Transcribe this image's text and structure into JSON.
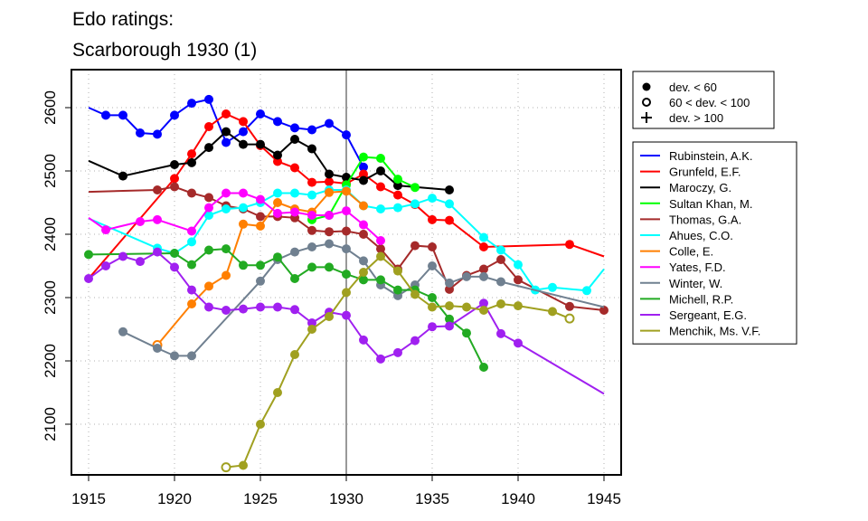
{
  "chart_data": {
    "type": "line",
    "title_lines": [
      "Edo ratings:",
      "Scarborough 1930 (1)"
    ],
    "xlim": [
      1914,
      1946
    ],
    "ylim": [
      2020,
      2660
    ],
    "xticks": [
      1915,
      1920,
      1925,
      1930,
      1935,
      1940,
      1945
    ],
    "yticks": [
      2100,
      2200,
      2300,
      2400,
      2500,
      2600
    ],
    "event_year": 1930,
    "grid": true,
    "marker_legend": [
      {
        "symbol": "filled-circle",
        "label": "dev. < 60"
      },
      {
        "symbol": "open-circle",
        "label": "60 < dev. < 100"
      },
      {
        "symbol": "plus",
        "label": "dev. > 100"
      }
    ],
    "series": [
      {
        "name": "Rubinstein, A.K.",
        "color": "#0000ff",
        "x": [
          1915,
          1916,
          1917,
          1918,
          1919,
          1920,
          1921,
          1922,
          1923,
          1924,
          1925,
          1926,
          1927,
          1928,
          1929,
          1930,
          1931
        ],
        "y": [
          2600,
          2588,
          2588,
          2560,
          2558,
          2588,
          2607,
          2613,
          2545,
          2562,
          2590,
          2578,
          2568,
          2565,
          2575,
          2557,
          2506
        ],
        "markers": [
          "none",
          "filled",
          "filled",
          "filled",
          "filled",
          "filled",
          "filled",
          "filled",
          "filled",
          "filled",
          "filled",
          "filled",
          "filled",
          "filled",
          "filled",
          "filled",
          "filled"
        ]
      },
      {
        "name": "Grunfeld, E.F.",
        "color": "#ff0000",
        "x": [
          1915,
          1920,
          1921,
          1922,
          1923,
          1924,
          1925,
          1926,
          1927,
          1928,
          1929,
          1930,
          1931,
          1932,
          1933,
          1934,
          1935,
          1936,
          1938,
          1943,
          1945
        ],
        "y": [
          2330,
          2488,
          2527,
          2570,
          2590,
          2578,
          2540,
          2515,
          2505,
          2482,
          2483,
          2480,
          2495,
          2475,
          2462,
          2447,
          2423,
          2422,
          2380,
          2384,
          2365
        ],
        "markers": [
          "none",
          "filled",
          "filled",
          "filled",
          "filled",
          "filled",
          "filled",
          "filled",
          "filled",
          "filled",
          "filled",
          "filled",
          "filled",
          "filled",
          "filled",
          "filled",
          "filled",
          "filled",
          "filled",
          "filled",
          "none"
        ]
      },
      {
        "name": "Maroczy, G.",
        "color": "#000000",
        "x": [
          1915,
          1917,
          1920,
          1921,
          1922,
          1923,
          1924,
          1925,
          1926,
          1927,
          1928,
          1929,
          1930,
          1931,
          1932,
          1933,
          1936
        ],
        "y": [
          2516,
          2492,
          2510,
          2513,
          2537,
          2562,
          2542,
          2542,
          2525,
          2550,
          2535,
          2495,
          2490,
          2485,
          2500,
          2477,
          2470
        ],
        "markers": [
          "none",
          "filled",
          "filled",
          "filled",
          "filled",
          "filled",
          "filled",
          "filled",
          "filled",
          "filled",
          "filled",
          "filled",
          "filled",
          "filled",
          "filled",
          "filled",
          "filled"
        ]
      },
      {
        "name": "Sultan Khan, M.",
        "color": "#00ff00",
        "x": [
          1928,
          1929,
          1930,
          1931,
          1932,
          1933,
          1934
        ],
        "y": [
          2423,
          2430,
          2478,
          2522,
          2520,
          2487,
          2474
        ],
        "markers": [
          "filled",
          "filled",
          "filled",
          "filled",
          "filled",
          "filled",
          "filled"
        ]
      },
      {
        "name": "Thomas, G.A.",
        "color": "#a52a2a",
        "x": [
          1915,
          1919,
          1920,
          1921,
          1922,
          1923,
          1924,
          1925,
          1926,
          1927,
          1928,
          1929,
          1930,
          1931,
          1932,
          1933,
          1934,
          1935,
          1936,
          1937,
          1938,
          1939,
          1940,
          1943,
          1945
        ],
        "y": [
          2467,
          2470,
          2475,
          2465,
          2458,
          2445,
          2440,
          2428,
          2428,
          2426,
          2406,
          2404,
          2405,
          2400,
          2377,
          2345,
          2382,
          2380,
          2313,
          2335,
          2345,
          2360,
          2328,
          2286,
          2280
        ],
        "markers": [
          "none",
          "filled",
          "filled",
          "filled",
          "filled",
          "filled",
          "filled",
          "filled",
          "filled",
          "filled",
          "filled",
          "filled",
          "filled",
          "filled",
          "filled",
          "filled",
          "filled",
          "filled",
          "filled",
          "filled",
          "filled",
          "filled",
          "filled",
          "filled",
          "filled"
        ]
      },
      {
        "name": "Ahues, C.O.",
        "color": "#00ffff",
        "x": [
          1915,
          1919,
          1920,
          1921,
          1922,
          1923,
          1924,
          1925,
          1926,
          1927,
          1928,
          1929,
          1930,
          1931,
          1932,
          1933,
          1934,
          1935,
          1936,
          1938,
          1939,
          1940,
          1941,
          1942,
          1944,
          1945
        ],
        "y": [
          2425,
          2378,
          2370,
          2388,
          2430,
          2440,
          2442,
          2450,
          2465,
          2465,
          2462,
          2470,
          2470,
          2445,
          2440,
          2442,
          2448,
          2457,
          2448,
          2395,
          2375,
          2352,
          2312,
          2316,
          2311,
          2345
        ],
        "markers": [
          "none",
          "filled",
          "filled",
          "filled",
          "filled",
          "filled",
          "filled",
          "filled",
          "filled",
          "filled",
          "filled",
          "filled",
          "filled",
          "filled",
          "filled",
          "filled",
          "filled",
          "filled",
          "filled",
          "filled",
          "filled",
          "filled",
          "filled",
          "filled",
          "filled",
          "none"
        ]
      },
      {
        "name": "Colle, E.",
        "color": "#ff7f00",
        "x": [
          1919,
          1921,
          1922,
          1923,
          1924,
          1925,
          1926,
          1927,
          1928,
          1929,
          1930,
          1931
        ],
        "y": [
          2225,
          2290,
          2318,
          2335,
          2416,
          2413,
          2450,
          2440,
          2435,
          2466,
          2468,
          2445
        ],
        "markers": [
          "open",
          "filled",
          "filled",
          "filled",
          "filled",
          "filled",
          "filled",
          "filled",
          "filled",
          "filled",
          "filled",
          "filled"
        ]
      },
      {
        "name": "Yates, F.D.",
        "color": "#ff00ff",
        "x": [
          1915,
          1916,
          1918,
          1919,
          1921,
          1922,
          1923,
          1924,
          1925,
          1926,
          1927,
          1928,
          1929,
          1930,
          1931,
          1932
        ],
        "y": [
          2426,
          2407,
          2420,
          2423,
          2405,
          2442,
          2465,
          2465,
          2455,
          2433,
          2435,
          2430,
          2430,
          2437,
          2415,
          2390
        ],
        "markers": [
          "none",
          "filled",
          "filled",
          "filled",
          "filled",
          "filled",
          "filled",
          "filled",
          "filled",
          "filled",
          "filled",
          "filled",
          "filled",
          "filled",
          "filled",
          "filled"
        ]
      },
      {
        "name": "Winter, W.",
        "color": "#708090",
        "x": [
          1917,
          1919,
          1920,
          1921,
          1925,
          1926,
          1927,
          1928,
          1929,
          1930,
          1931,
          1932,
          1933,
          1934,
          1935,
          1936,
          1937,
          1938,
          1939,
          1945
        ],
        "y": [
          2246,
          2220,
          2208,
          2208,
          2326,
          2360,
          2372,
          2380,
          2385,
          2377,
          2358,
          2320,
          2303,
          2320,
          2350,
          2323,
          2333,
          2333,
          2325,
          2285
        ],
        "markers": [
          "filled",
          "filled",
          "filled",
          "filled",
          "filled",
          "filled",
          "filled",
          "filled",
          "filled",
          "filled",
          "filled",
          "filled",
          "filled",
          "filled",
          "filled",
          "filled",
          "filled",
          "filled",
          "filled",
          "none"
        ]
      },
      {
        "name": "Michell, R.P.",
        "color": "#22aa22",
        "x": [
          1915,
          1920,
          1921,
          1922,
          1923,
          1924,
          1925,
          1926,
          1927,
          1928,
          1929,
          1930,
          1931,
          1932,
          1933,
          1934,
          1935,
          1936,
          1937,
          1938
        ],
        "y": [
          2368,
          2370,
          2352,
          2375,
          2377,
          2351,
          2351,
          2364,
          2330,
          2348,
          2348,
          2337,
          2328,
          2328,
          2312,
          2312,
          2300,
          2266,
          2244,
          2190
        ],
        "markers": [
          "filled",
          "filled",
          "filled",
          "filled",
          "filled",
          "filled",
          "filled",
          "filled",
          "filled",
          "filled",
          "filled",
          "filled",
          "filled",
          "filled",
          "filled",
          "filled",
          "filled",
          "filled",
          "filled",
          "filled"
        ]
      },
      {
        "name": "Sergeant, E.G.",
        "color": "#a020f0",
        "x": [
          1915,
          1916,
          1917,
          1918,
          1919,
          1920,
          1921,
          1922,
          1923,
          1924,
          1925,
          1926,
          1927,
          1928,
          1929,
          1930,
          1931,
          1932,
          1933,
          1934,
          1935,
          1936,
          1938,
          1939,
          1940,
          1945
        ],
        "y": [
          2330,
          2350,
          2365,
          2357,
          2372,
          2348,
          2312,
          2285,
          2280,
          2282,
          2285,
          2285,
          2281,
          2260,
          2277,
          2272,
          2233,
          2203,
          2213,
          2232,
          2254,
          2255,
          2291,
          2243,
          2228,
          2148
        ],
        "markers": [
          "filled",
          "filled",
          "filled",
          "filled",
          "filled",
          "filled",
          "filled",
          "filled",
          "filled",
          "filled",
          "filled",
          "filled",
          "filled",
          "filled",
          "filled",
          "filled",
          "filled",
          "filled",
          "filled",
          "filled",
          "filled",
          "filled",
          "filled",
          "filled",
          "filled",
          "none"
        ]
      },
      {
        "name": "Menchik, Ms. V.F.",
        "color": "#a0a020",
        "x": [
          1923,
          1924,
          1925,
          1926,
          1927,
          1928,
          1929,
          1930,
          1931,
          1932,
          1933,
          1934,
          1935,
          1936,
          1937,
          1938,
          1939,
          1940,
          1942,
          1943
        ],
        "y": [
          2032,
          2035,
          2100,
          2150,
          2210,
          2250,
          2270,
          2308,
          2340,
          2365,
          2342,
          2305,
          2285,
          2287,
          2285,
          2280,
          2290,
          2287,
          2278,
          2267
        ],
        "markers": [
          "open",
          "filled",
          "filled",
          "filled",
          "filled",
          "filled",
          "filled",
          "filled",
          "filled",
          "filled",
          "filled",
          "filled",
          "filled",
          "filled",
          "filled",
          "filled",
          "filled",
          "filled",
          "filled",
          "open"
        ]
      }
    ]
  }
}
